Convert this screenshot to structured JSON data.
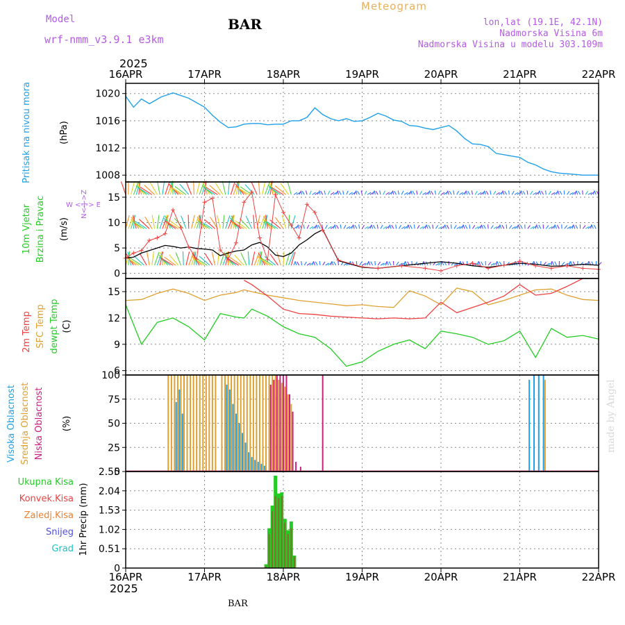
{
  "header": {
    "model_label": "Model",
    "model_name": "wrf-nmm_v3.9.1 e3km",
    "station": "BAR",
    "product": "Meteogram",
    "coords": "lon,lat (19.1E, 42.1N)",
    "elevation": "Nadmorska Visina 6m",
    "model_elevation": "Nadmorska Visina u modelu 303.109m",
    "year_top": "2025",
    "year_bottom": "2025",
    "footer_station": "BAR",
    "credit": "made by Angel"
  },
  "colors": {
    "pressure": "#1ea0ea",
    "temp2m": "#ee4040",
    "sfc": "#e0a030",
    "dewpt": "#22cc22",
    "wind_speed": "#000000",
    "gust": "#ee4040",
    "high_cloud": "#1ea0ea",
    "mid_cloud": "#e0a030",
    "low_cloud": "#cc2080",
    "total_precip": "#22cc22",
    "conv_precip": "#ee4040",
    "frozen_precip": "#ee8030",
    "snow": "#5050e0",
    "graupel": "#22c0c0"
  },
  "x_axis": {
    "ticks": [
      "16APR",
      "17APR",
      "18APR",
      "19APR",
      "20APR",
      "21APR",
      "22APR"
    ]
  },
  "chart_data": [
    {
      "type": "line",
      "panel": "pressure",
      "ylabel_main": "Pritisak na nivou mora",
      "ylabel_unit": "(hPa)",
      "ylim": [
        1007,
        1021.5
      ],
      "yticks": [
        "1008",
        "1012",
        "1016",
        "1020"
      ],
      "grid": true,
      "x": [
        0,
        0.1,
        0.2,
        0.3,
        0.45,
        0.6,
        0.8,
        1.0,
        1.1,
        1.2,
        1.3,
        1.4,
        1.5,
        1.6,
        1.7,
        1.8,
        1.9,
        2.0,
        2.1,
        2.2,
        2.3,
        2.4,
        2.5,
        2.6,
        2.7,
        2.8,
        2.9,
        3.0,
        3.1,
        3.2,
        3.3,
        3.4,
        3.5,
        3.6,
        3.7,
        3.8,
        3.9,
        4.0,
        4.1,
        4.2,
        4.3,
        4.4,
        4.5,
        4.6,
        4.7,
        4.8,
        4.9,
        5.0,
        5.1,
        5.2,
        5.3,
        5.4,
        5.5,
        5.6,
        5.7,
        5.8,
        5.9,
        6.0
      ],
      "series": [
        {
          "values": [
            1019.6,
            1018.0,
            1019.2,
            1018.5,
            1019.5,
            1020.1,
            1019.3,
            1018.0,
            1016.8,
            1015.8,
            1015.0,
            1015.1,
            1015.5,
            1015.6,
            1015.6,
            1015.4,
            1015.5,
            1015.5,
            1016.0,
            1016.0,
            1016.5,
            1017.9,
            1016.9,
            1016.3,
            1016.0,
            1016.3,
            1015.9,
            1016.0,
            1016.5,
            1017.1,
            1016.7,
            1016.1,
            1015.9,
            1015.3,
            1015.2,
            1014.9,
            1014.7,
            1015.0,
            1015.3,
            1014.5,
            1013.4,
            1012.6,
            1012.5,
            1012.2,
            1011.2,
            1011.0,
            1010.8,
            1010.6,
            1009.9,
            1009.5,
            1008.9,
            1008.5,
            1008.3,
            1008.2,
            1008.1,
            1008.0,
            1008.0,
            1008.0
          ]
        }
      ]
    },
    {
      "type": "line",
      "panel": "wind",
      "ylabel_main": "10m Vjetar",
      "ylabel_main2": "Brzina i Pravac",
      "ylabel_unit": "(m/s)",
      "compass_ns": "N<-|->Z",
      "compass_we": "W <-|-> E",
      "ylim": [
        -1,
        18
      ],
      "yticks": [
        "0",
        "5",
        "10",
        "15"
      ],
      "grid": true,
      "x": [
        0,
        0.1,
        0.2,
        0.3,
        0.4,
        0.5,
        0.6,
        0.7,
        0.8,
        0.9,
        1.0,
        1.1,
        1.2,
        1.3,
        1.4,
        1.5,
        1.6,
        1.7,
        1.8,
        1.9,
        2.0,
        2.1,
        2.2,
        2.3,
        2.4,
        2.5,
        2.7,
        3.0,
        3.2,
        3.5,
        3.8,
        4.0,
        4.2,
        4.4,
        4.6,
        4.8,
        5.0,
        5.2,
        5.4,
        5.6,
        5.8,
        6.0
      ],
      "series": [
        {
          "values": [
            3.0,
            3.2,
            4.0,
            4.5,
            5.0,
            5.5,
            5.3,
            5.0,
            5.2,
            4.9,
            4.8,
            4.6,
            3.5,
            4.0,
            4.4,
            4.6,
            5.6,
            6.1,
            5.2,
            3.6,
            3.3,
            4.0,
            5.6,
            6.6,
            7.8,
            8.6,
            2.5,
            1.2,
            1.0,
            1.5,
            2.0,
            2.3,
            2.0,
            1.5,
            1.2,
            1.6,
            2.0,
            1.8,
            1.4,
            1.5,
            1.8,
            1.6
          ]
        },
        {
          "values": [
            3.0,
            4.0,
            4.5,
            6.5,
            7.0,
            7.8,
            12.5,
            9.0,
            5.2,
            2.8,
            14.0,
            14.8,
            4.6,
            2.8,
            6.0,
            14.0,
            16.0,
            7.0,
            2.7,
            15.5,
            12.0,
            9.5,
            7.0,
            13.6,
            12.0,
            8.5,
            2.6,
            1.3,
            1.0,
            1.5,
            1.0,
            0.5,
            1.5,
            2.0,
            1.0,
            1.6,
            2.4,
            1.5,
            1.0,
            1.5,
            1.0,
            0.8
          ]
        }
      ]
    },
    {
      "type": "line",
      "panel": "temperature",
      "ylabel_main": "2m Temp",
      "ylabel_main2": "SFC Temp",
      "ylabel_main3": "dewpt Temp",
      "ylabel_unit": "(C)",
      "ylim": [
        5.5,
        16.5
      ],
      "yticks": [
        "6",
        "9",
        "12",
        "15"
      ],
      "grid": true,
      "x": [
        0,
        0.2,
        0.4,
        0.6,
        0.8,
        1.0,
        1.2,
        1.4,
        1.5,
        1.6,
        1.8,
        2.0,
        2.2,
        2.4,
        2.6,
        2.8,
        3.0,
        3.2,
        3.4,
        3.6,
        3.8,
        4.0,
        4.2,
        4.4,
        4.6,
        4.8,
        5.0,
        5.2,
        5.4,
        5.6,
        5.8,
        6.0
      ],
      "series": [
        {
          "values": [
            null,
            null,
            null,
            null,
            null,
            null,
            null,
            null,
            16.3,
            15.8,
            14.5,
            13.0,
            12.5,
            12.4,
            12.2,
            12.1,
            12.0,
            11.9,
            12.0,
            11.9,
            12.0,
            13.8,
            12.6,
            13.2,
            13.8,
            14.5,
            15.8,
            14.6,
            14.8,
            15.6,
            16.5,
            null
          ]
        },
        {
          "values": [
            14.0,
            14.1,
            14.8,
            15.3,
            14.8,
            14.0,
            14.6,
            14.9,
            15.2,
            15.0,
            14.6,
            14.3,
            14.0,
            13.8,
            13.6,
            13.4,
            13.5,
            13.3,
            13.2,
            15.1,
            14.5,
            13.5,
            15.4,
            15.0,
            13.5,
            14.0,
            14.6,
            15.2,
            15.3,
            14.6,
            14.1,
            14.0
          ]
        },
        {
          "values": [
            13.5,
            9.0,
            11.5,
            12.0,
            11.0,
            9.5,
            12.5,
            12.1,
            12.0,
            13.0,
            12.2,
            11.0,
            10.2,
            9.8,
            8.5,
            6.5,
            7.0,
            8.2,
            9.0,
            9.5,
            8.5,
            10.5,
            10.2,
            9.8,
            9.0,
            9.4,
            10.5,
            7.5,
            10.8,
            9.8,
            10.0,
            9.6
          ]
        }
      ]
    },
    {
      "type": "bar",
      "panel": "cloud",
      "ylabel_main": "Visoka Oblacnost",
      "ylabel_main2": "Srednja Oblacnost",
      "ylabel_main3": "Niska Oblacnost",
      "ylabel_unit": "(%)",
      "ylim": [
        0,
        100
      ],
      "yticks": [
        "0",
        "25",
        "50",
        "75",
        "100"
      ],
      "grid": true,
      "x": [
        0.54,
        0.58,
        0.62,
        0.66,
        0.7,
        0.74,
        0.78,
        0.82,
        0.86,
        0.9,
        0.94,
        0.98,
        1.02,
        1.06,
        1.1,
        1.14,
        1.22,
        1.26,
        1.3,
        1.34,
        1.38,
        1.42,
        1.46,
        1.5,
        1.54,
        1.58,
        1.62,
        1.66,
        1.7,
        1.74,
        1.78,
        1.82,
        1.86,
        1.9,
        1.94,
        1.98,
        2.02,
        2.06,
        2.1,
        2.14,
        2.2,
        2.48,
        5.14,
        5.2,
        5.26,
        5.32
      ],
      "series": [
        {
          "name": "Visoka Oblacnost",
          "values": [
            0,
            0,
            0,
            72,
            85,
            60,
            0,
            0,
            0,
            0,
            0,
            0,
            0,
            0,
            0,
            0,
            0,
            0,
            90,
            85,
            70,
            60,
            50,
            40,
            30,
            20,
            15,
            12,
            10,
            8,
            6,
            0,
            0,
            0,
            0,
            0,
            0,
            0,
            0,
            0,
            0,
            0,
            95,
            100,
            100,
            100
          ]
        },
        {
          "name": "Srednja Oblacnost",
          "values": [
            100,
            100,
            100,
            100,
            100,
            100,
            100,
            100,
            100,
            100,
            100,
            100,
            100,
            100,
            100,
            100,
            100,
            100,
            100,
            100,
            100,
            100,
            100,
            100,
            100,
            100,
            100,
            100,
            100,
            100,
            100,
            100,
            100,
            100,
            95,
            92,
            88,
            80,
            70,
            0,
            0,
            0,
            0,
            0,
            0,
            95
          ]
        },
        {
          "name": "Niska Oblacnost",
          "values": [
            0,
            0,
            0,
            0,
            0,
            0,
            0,
            0,
            0,
            0,
            0,
            0,
            0,
            0,
            0,
            0,
            0,
            0,
            0,
            0,
            0,
            0,
            0,
            0,
            0,
            0,
            0,
            0,
            0,
            0,
            0,
            90,
            95,
            100,
            100,
            100,
            100,
            80,
            62,
            10,
            5,
            100,
            0,
            0,
            0,
            0
          ]
        }
      ]
    },
    {
      "type": "bar",
      "panel": "precip",
      "ylabel_main": "1hr Precip",
      "ylabel_unit": "(mm)",
      "legend": [
        "Ukupna Kisa",
        "Konvek.Kisa",
        "Zaledj.Kisa",
        "Snijeg",
        "Grad"
      ],
      "ylim": [
        0,
        2.55
      ],
      "yticks": [
        "0",
        "0.51",
        "1.02",
        "1.53",
        "2.04",
        "2.55"
      ],
      "grid": true,
      "x": [
        1.78,
        1.82,
        1.86,
        1.9,
        1.94,
        1.98,
        2.02,
        2.06,
        2.1,
        2.14,
        2.18
      ],
      "series": [
        {
          "name": "Ukupna Kisa",
          "values": [
            0.1,
            1.05,
            1.65,
            2.44,
            1.97,
            2.0,
            1.3,
            1.0,
            1.23,
            0.33,
            0.0
          ]
        },
        {
          "name": "Konvek.Kisa",
          "values": [
            0.05,
            0.9,
            1.5,
            1.9,
            1.85,
            1.9,
            1.2,
            0.9,
            1.05,
            0.3,
            0.0
          ]
        }
      ]
    }
  ]
}
